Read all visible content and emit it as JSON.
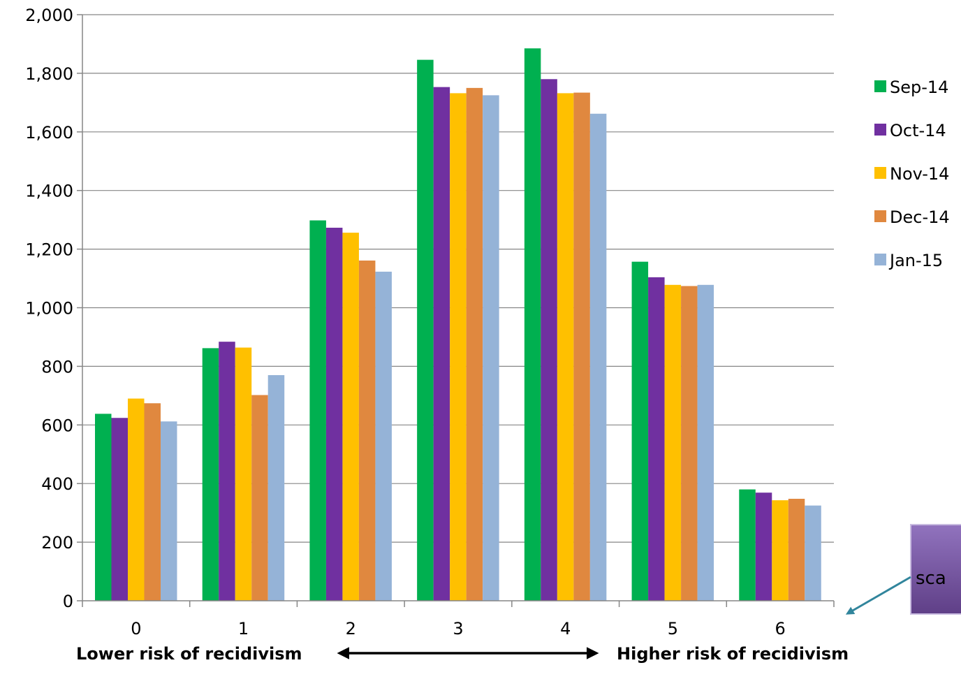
{
  "chart_data": {
    "type": "bar",
    "categories": [
      "0",
      "1",
      "2",
      "3",
      "4",
      "5",
      "6"
    ],
    "series": [
      {
        "name": "Sep-14",
        "color": "#00B050",
        "values": [
          638,
          862,
          1298,
          1846,
          1885,
          1157,
          380
        ]
      },
      {
        "name": "Oct-14",
        "color": "#7030A0",
        "values": [
          624,
          884,
          1273,
          1753,
          1780,
          1104,
          369
        ]
      },
      {
        "name": "Nov-14",
        "color": "#FFC000",
        "values": [
          690,
          864,
          1256,
          1732,
          1732,
          1078,
          343
        ]
      },
      {
        "name": "Dec-14",
        "color": "#E0883F",
        "values": [
          674,
          702,
          1161,
          1750,
          1734,
          1074,
          348
        ]
      },
      {
        "name": "Jan-15",
        "color": "#95B3D7",
        "values": [
          612,
          770,
          1123,
          1725,
          1662,
          1078,
          325
        ]
      }
    ],
    "ylim": [
      0,
      2000
    ],
    "yticks": [
      0,
      200,
      400,
      600,
      800,
      1000,
      1200,
      1400,
      1600,
      1800,
      2000
    ],
    "ytick_labels": [
      "0",
      "200",
      "400",
      "600",
      "800",
      "1,000",
      "1,200",
      "1,400",
      "1,600",
      "1,800",
      "2,000"
    ],
    "grid": true,
    "legend": "right"
  },
  "annotations": {
    "lower_risk": "Lower risk of recidivism",
    "higher_risk": "Higher risk of recidivism",
    "callout_text": "sca"
  },
  "colors": {
    "callout_fill": "#7E5BA8",
    "callout_arrow": "#31859C",
    "gridline": "#868686"
  }
}
